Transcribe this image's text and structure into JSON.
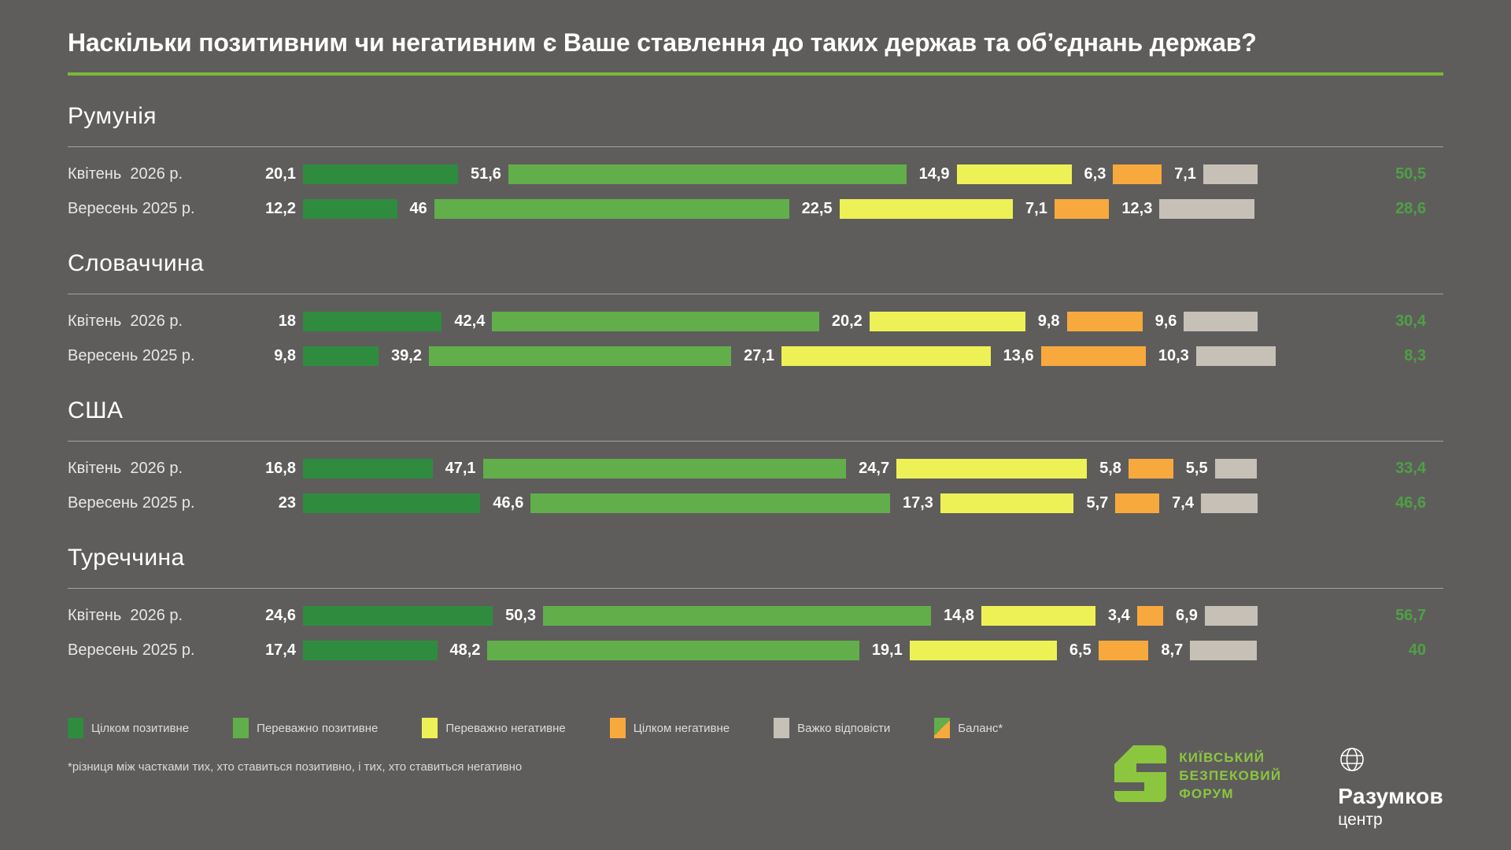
{
  "title": "Наскільки позитивним чи негативним є Ваше ставлення до таких держав та об’єднань держав?",
  "colors": {
    "background": "#5e5d5c",
    "title_underline": "#7ab839",
    "balance_text": "#4fa045",
    "ksf_green": "#8cc63f"
  },
  "chart_data": {
    "type": "bar",
    "orientation": "horizontal-stacked",
    "unit": "percent",
    "series_labels": [
      "Цілком позитивне",
      "Переважно позитивне",
      "Переважно негативне",
      "Цілком негативне",
      "Важко відповісти"
    ],
    "series_colors": [
      "#2f8c3e",
      "#62ae4b",
      "#eef156",
      "#f8a93d",
      "#c6c0b7"
    ],
    "sections": [
      {
        "country": "Румунія",
        "rows": [
          {
            "label": "Квітень  2026 р.",
            "values": [
              20.1,
              51.6,
              14.9,
              6.3,
              7.1
            ],
            "display": [
              "20,1",
              "51,6",
              "14,9",
              "6,3",
              "7,1"
            ],
            "balance": 50.5,
            "balance_display": "50,5"
          },
          {
            "label": "Вересень 2025 р.",
            "values": [
              12.2,
              46,
              22.5,
              7.1,
              12.3
            ],
            "display": [
              "12,2",
              "46",
              "22,5",
              "7,1",
              "12,3"
            ],
            "balance": 28.6,
            "balance_display": "28,6"
          }
        ]
      },
      {
        "country": "Словаччина",
        "rows": [
          {
            "label": "Квітень  2026 р.",
            "values": [
              18,
              42.4,
              20.2,
              9.8,
              9.6
            ],
            "display": [
              "18",
              "42,4",
              "20,2",
              "9,8",
              "9,6"
            ],
            "balance": 30.4,
            "balance_display": "30,4"
          },
          {
            "label": "Вересень 2025 р.",
            "values": [
              9.8,
              39.2,
              27.1,
              13.6,
              10.3
            ],
            "display": [
              "9,8",
              "39,2",
              "27,1",
              "13,6",
              "10,3"
            ],
            "balance": 8.3,
            "balance_display": "8,3"
          }
        ]
      },
      {
        "country": "США",
        "rows": [
          {
            "label": "Квітень  2026 р.",
            "values": [
              16.8,
              47.1,
              24.7,
              5.8,
              5.5
            ],
            "display": [
              "16,8",
              "47,1",
              "24,7",
              "5,8",
              "5,5"
            ],
            "balance": 33.4,
            "balance_display": "33,4"
          },
          {
            "label": "Вересень 2025 р.",
            "values": [
              23,
              46.6,
              17.3,
              5.7,
              7.4
            ],
            "display": [
              "23",
              "46,6",
              "17,3",
              "5,7",
              "7,4"
            ],
            "balance": 46.6,
            "balance_display": "46,6"
          }
        ]
      },
      {
        "country": "Туреччина",
        "rows": [
          {
            "label": "Квітень  2026 р.",
            "values": [
              24.6,
              50.3,
              14.8,
              3.4,
              6.9
            ],
            "display": [
              "24,6",
              "50,3",
              "14,8",
              "3,4",
              "6,9"
            ],
            "balance": 56.7,
            "balance_display": "56,7"
          },
          {
            "label": "Вересень 2025 р.",
            "values": [
              17.4,
              48.2,
              19.1,
              6.5,
              8.7
            ],
            "display": [
              "17,4",
              "48,2",
              "19,1",
              "6,5",
              "8,7"
            ],
            "balance": 40,
            "balance_display": "40"
          }
        ]
      }
    ]
  },
  "legend": {
    "items": [
      {
        "label": "Цілком позитивне",
        "color": "#2f8c3e"
      },
      {
        "label": "Переважно позитивне",
        "color": "#62ae4b"
      },
      {
        "label": "Переважно негативне",
        "color": "#eef156"
      },
      {
        "label": "Цілком негативне",
        "color": "#f8a93d"
      },
      {
        "label": "Важко відповісти",
        "color": "#c6c0b7"
      },
      {
        "label": "Баланс*",
        "split_colors": [
          "#62ae4b",
          "#f8a93d"
        ]
      }
    ]
  },
  "footnote": "*різниця між частками тих, хто ставиться позитивно, і тих, хто ставиться негативно",
  "branding": {
    "ksf": {
      "icon": "ksf-s-block-icon",
      "lines": [
        "КИЇВСЬКИЙ",
        "БЕЗПЕКОВИЙ",
        "ФОРУМ"
      ]
    },
    "razumkov": {
      "icon": "globe-icon",
      "name": "Разумков",
      "sub": "центр"
    }
  }
}
